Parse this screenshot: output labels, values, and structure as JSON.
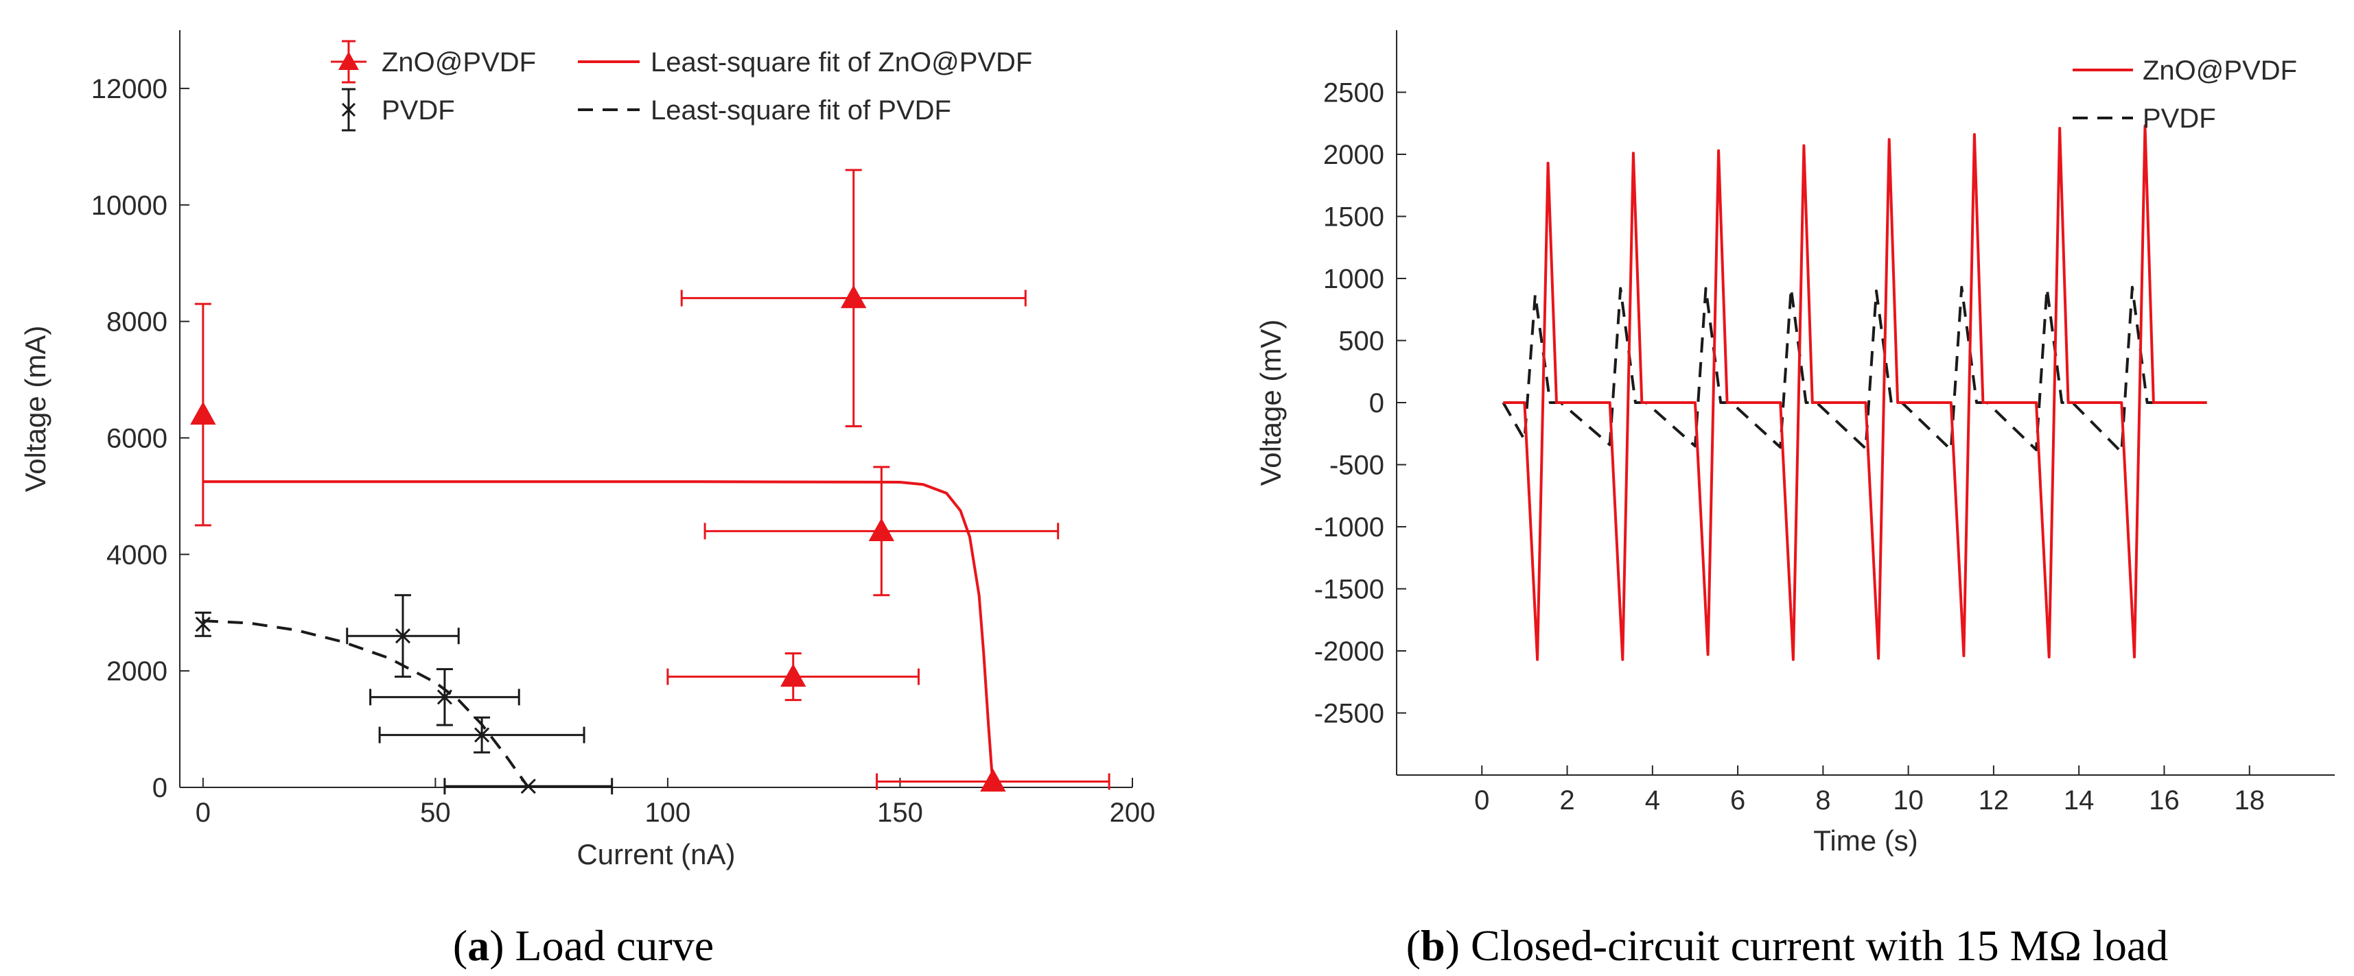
{
  "colors": {
    "red": "#e8151b",
    "black": "#1a1a1a",
    "axis": "#262626"
  },
  "chart_data": [
    {
      "type": "scatter",
      "panel": "a",
      "caption_label": "a",
      "caption_text": "Load curve",
      "xlabel": "Current (nA)",
      "ylabel": "Voltage (mA)",
      "xlim": [
        -5,
        200
      ],
      "ylim": [
        0,
        13000
      ],
      "xticks": [
        0,
        50,
        100,
        150,
        200
      ],
      "yticks": [
        0,
        2000,
        4000,
        6000,
        8000,
        10000,
        12000
      ],
      "legend_position": "top",
      "series": [
        {
          "name": "ZnO@PVDF",
          "color": "#e8151b",
          "marker": "triangle",
          "points": [
            {
              "x": 0,
              "y": 6400,
              "xerr": 0,
              "yerr": 1900
            },
            {
              "x": 140,
              "y": 8400,
              "xerr": 37,
              "yerr": 2200
            },
            {
              "x": 146,
              "y": 4400,
              "xerr": 38,
              "yerr": 1100
            },
            {
              "x": 127,
              "y": 1900,
              "xerr": 27,
              "yerr": 400
            },
            {
              "x": 170,
              "y": 100,
              "xerr": 25,
              "yerr": 0
            }
          ]
        },
        {
          "name": "PVDF",
          "color": "#1a1a1a",
          "marker": "x",
          "points": [
            {
              "x": 0,
              "y": 2800,
              "xerr": 0,
              "yerr": 200
            },
            {
              "x": 43,
              "y": 2600,
              "xerr": 12,
              "yerr": 700
            },
            {
              "x": 52,
              "y": 1550,
              "xerr": 16,
              "yerr": 480
            },
            {
              "x": 60,
              "y": 900,
              "xerr": 22,
              "yerr": 300
            },
            {
              "x": 70,
              "y": 20,
              "xerr": 18,
              "yerr": 0
            }
          ]
        },
        {
          "name": "Least-square fit of ZnO@PVDF",
          "color": "#e8151b",
          "style": "solid",
          "x": [
            0,
            100,
            150,
            155,
            160,
            163,
            165,
            167,
            168,
            169,
            170
          ],
          "y": [
            5250,
            5250,
            5240,
            5200,
            5050,
            4750,
            4300,
            3300,
            2300,
            1100,
            0
          ]
        },
        {
          "name": "Least-square fit of PVDF",
          "color": "#1a1a1a",
          "style": "dashed",
          "x": [
            0,
            10,
            20,
            30,
            40,
            50,
            55,
            60,
            65,
            70
          ],
          "y": [
            2860,
            2820,
            2700,
            2500,
            2220,
            1800,
            1500,
            1080,
            560,
            0
          ]
        }
      ]
    },
    {
      "type": "line",
      "panel": "b",
      "caption_label": "b",
      "caption_text": "Closed-circuit current with 15 MΩ load",
      "xlabel": "Time (s)",
      "ylabel": "Voltage (mV)",
      "xlim": [
        -2,
        20
      ],
      "ylim": [
        -3000,
        3000
      ],
      "xticks": [
        0,
        2,
        4,
        6,
        8,
        10,
        12,
        14,
        16,
        18
      ],
      "yticks": [
        -2500,
        -2000,
        -1500,
        -1000,
        -500,
        0,
        500,
        1000,
        1500,
        2000,
        2500
      ],
      "legend_position": "top-right",
      "series": [
        {
          "name": "ZnO@PVDF",
          "color": "#e8151b",
          "style": "solid",
          "x": [
            0.5,
            1.0,
            1.3,
            1.55,
            1.75,
            3.0,
            3.3,
            3.55,
            3.75,
            5.0,
            5.3,
            5.55,
            5.75,
            7.0,
            7.3,
            7.55,
            7.75,
            9.0,
            9.3,
            9.55,
            9.75,
            11.0,
            11.3,
            11.55,
            11.75,
            13.0,
            13.3,
            13.55,
            13.75,
            15.0,
            15.3,
            15.55,
            15.75,
            17.0
          ],
          "y": [
            0,
            0,
            -2070,
            1930,
            0,
            0,
            -2070,
            2010,
            0,
            0,
            -2030,
            2030,
            0,
            0,
            -2070,
            2070,
            0,
            0,
            -2060,
            2120,
            0,
            0,
            -2040,
            2160,
            0,
            0,
            -2050,
            2210,
            0,
            0,
            -2050,
            2230,
            0,
            0
          ]
        },
        {
          "name": "PVDF",
          "color": "#1a1a1a",
          "style": "dashed",
          "x": [
            0.5,
            1.0,
            1.25,
            1.6,
            1.85,
            3.0,
            3.25,
            3.6,
            3.85,
            5.0,
            5.25,
            5.6,
            5.85,
            7.0,
            7.25,
            7.6,
            7.85,
            9.0,
            9.25,
            9.6,
            9.85,
            11.0,
            11.25,
            11.6,
            11.85,
            13.0,
            13.25,
            13.6,
            13.85,
            15.0,
            15.25,
            15.6,
            15.85,
            17.0
          ],
          "y": [
            0,
            -300,
            870,
            0,
            0,
            -340,
            920,
            0,
            0,
            -350,
            920,
            0,
            0,
            -360,
            920,
            0,
            0,
            -370,
            900,
            0,
            0,
            -380,
            930,
            0,
            0,
            -380,
            920,
            0,
            0,
            -400,
            930,
            0,
            0,
            0
          ]
        }
      ]
    }
  ]
}
